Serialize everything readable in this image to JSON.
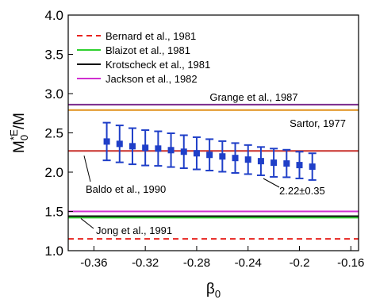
{
  "chart_data": {
    "type": "errorbar",
    "xlabel": {
      "base": "β",
      "sub": "0"
    },
    "ylabel": {
      "base": "M",
      "sub": "0",
      "sup": "*E",
      "rest": "/M"
    },
    "xlim": [
      -0.38,
      -0.154
    ],
    "ylim": [
      1.0,
      4.0
    ],
    "xticks": [
      -0.36,
      -0.32,
      -0.28,
      -0.24,
      -0.2,
      -0.16
    ],
    "yticks": [
      {
        "value": 1,
        "label": "1.0"
      },
      {
        "value": 1.5,
        "label": "1.5"
      },
      {
        "value": 2,
        "label": "2.0"
      },
      {
        "value": 2.5,
        "label": "2.5"
      },
      {
        "value": 3,
        "label": "3.0"
      },
      {
        "value": 3.5,
        "label": "3.5"
      },
      {
        "value": 4,
        "label": "4.0"
      }
    ],
    "reference_lines": [
      {
        "name": "Bernard et al., 1981",
        "value": 1.15,
        "color": "#e8231f",
        "dash": true
      },
      {
        "name": "Blaizot et al., 1981",
        "value": 1.42,
        "color": "#2fd12f",
        "dash": false
      },
      {
        "name": "Krotscheck et al., 1981",
        "value": 1.44,
        "color": "#111111",
        "dash": false
      },
      {
        "name": "Jackson et al., 1982",
        "value": 1.5,
        "color": "#d02fd0",
        "dash": false
      },
      {
        "value": 2.86,
        "color": "#7a2a8c",
        "dash": false
      },
      {
        "value": 2.79,
        "color": "#e0901c",
        "dash": false
      },
      {
        "value": 2.27,
        "color": "#c8302c",
        "dash": false
      }
    ],
    "series": [
      {
        "color": "#1f3fc8",
        "x": [
          -0.35,
          -0.34,
          -0.33,
          -0.32,
          -0.31,
          -0.3,
          -0.29,
          -0.28,
          -0.27,
          -0.26,
          -0.25,
          -0.24,
          -0.23,
          -0.22,
          -0.21,
          -0.2,
          -0.19
        ],
        "values": [
          2.39,
          2.36,
          2.33,
          2.31,
          2.3,
          2.28,
          2.26,
          2.24,
          2.22,
          2.2,
          2.18,
          2.16,
          2.14,
          2.12,
          2.11,
          2.09,
          2.07
        ],
        "errors": [
          0.24,
          0.235,
          0.23,
          0.225,
          0.22,
          0.215,
          0.21,
          0.205,
          0.2,
          0.195,
          0.19,
          0.185,
          0.18,
          0.18,
          0.175,
          0.17,
          0.17
        ]
      }
    ],
    "annotations": [
      "Grange et al., 1987",
      "Sartor, 1977",
      "Baldo et al., 1990",
      "2.22±0.35",
      "Jong et al., 1991"
    ]
  }
}
